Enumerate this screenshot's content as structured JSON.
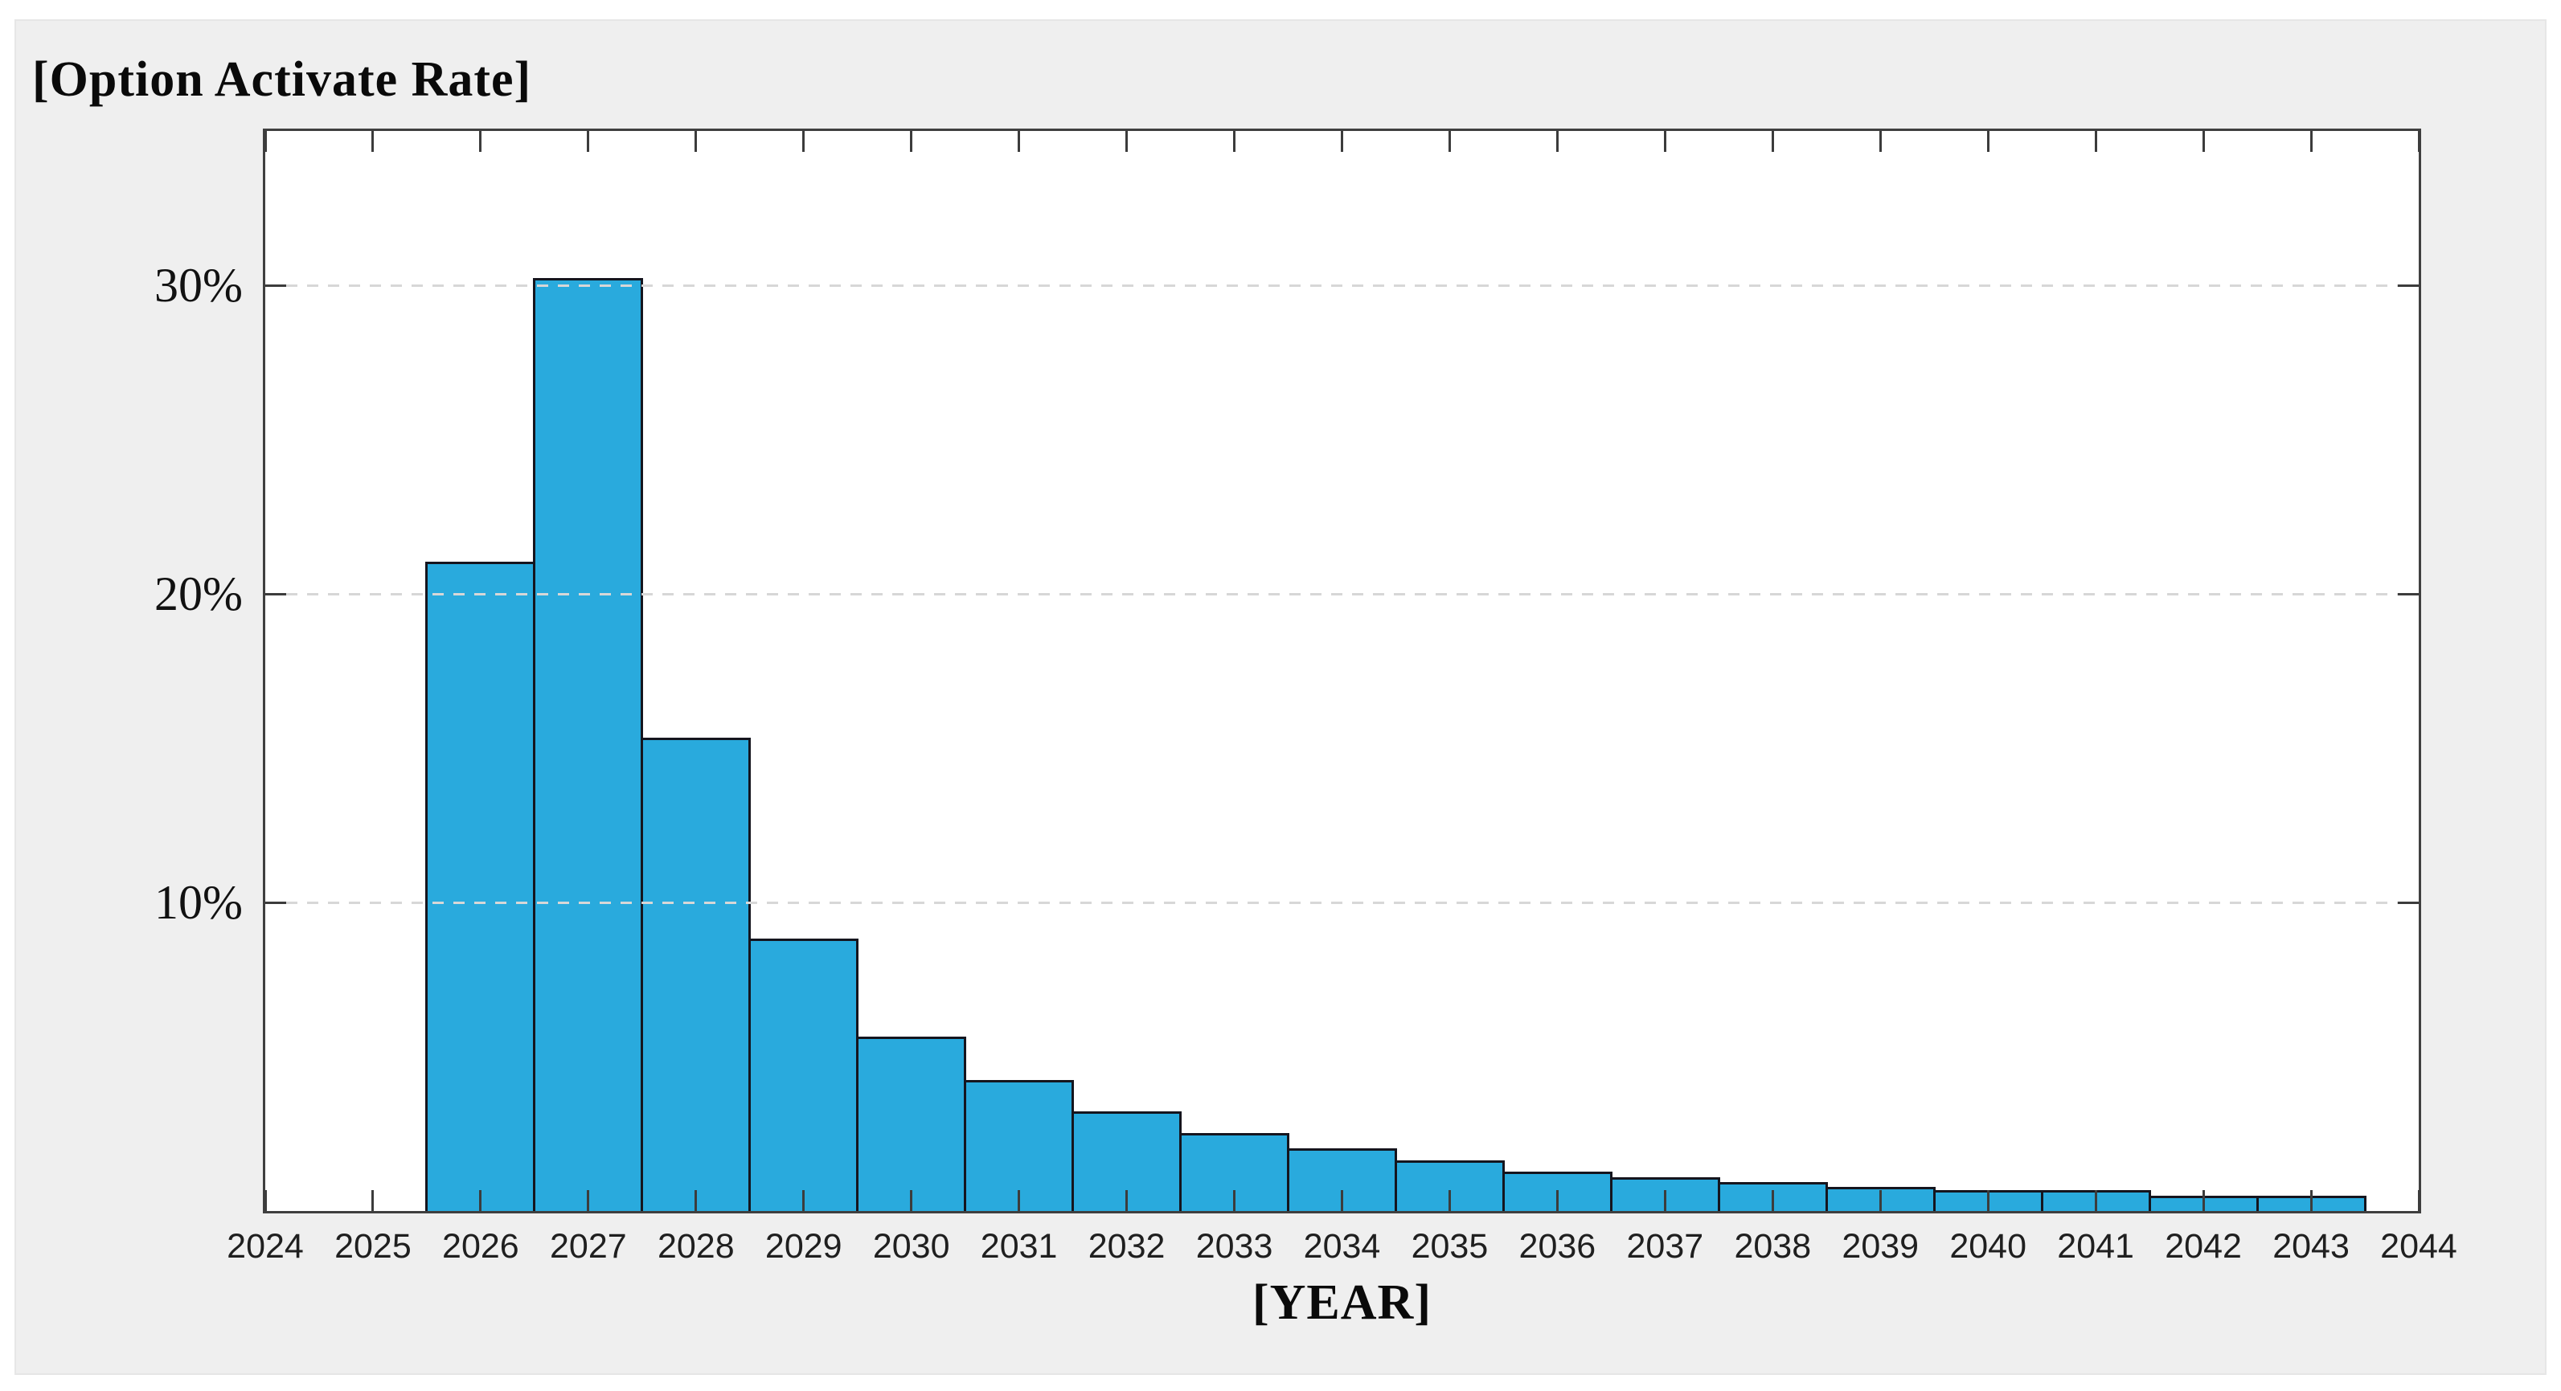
{
  "figure": {
    "title": "[Option Activate Rate]"
  },
  "chart_data": {
    "type": "bar",
    "title": "[Option Activate Rate]",
    "xlabel": "[YEAR]",
    "ylabel": "",
    "x_tick_labels": [
      "2024",
      "2025",
      "2026",
      "2027",
      "2028",
      "2029",
      "2030",
      "2031",
      "2032",
      "2033",
      "2034",
      "2035",
      "2036",
      "2037",
      "2038",
      "2039",
      "2040",
      "2041",
      "2042",
      "2043",
      "2044"
    ],
    "y_ticks": [
      {
        "value": 10,
        "label": "10%"
      },
      {
        "value": 20,
        "label": "20%"
      },
      {
        "value": 30,
        "label": "30%"
      }
    ],
    "xlim": [
      2024,
      2044
    ],
    "ylim": [
      0,
      35
    ],
    "grid": "horizontal dashed at y ticks, drawn over bars",
    "legend": "none",
    "bar_width_years": 1,
    "series": [
      {
        "name": "Option Activate Rate",
        "x": [
          2026,
          2027,
          2028,
          2029,
          2030,
          2031,
          2032,
          2033,
          2034,
          2035,
          2036,
          2037,
          2038,
          2039,
          2040,
          2041,
          2042,
          2043
        ],
        "values": [
          21.0,
          30.2,
          15.3,
          8.8,
          5.6,
          4.2,
          3.2,
          2.5,
          2.0,
          1.6,
          1.25,
          1.05,
          0.9,
          0.75,
          0.65,
          0.65,
          0.45,
          0.45
        ]
      }
    ],
    "colors": {
      "bar_fill": "#29aadd",
      "bar_edge": "#15151e",
      "axis": "#3f3f3f",
      "grid": "#d7d7d7",
      "figure_background": "#efefef",
      "plot_background": "#ffffff",
      "text": "#0a0a0a"
    }
  }
}
